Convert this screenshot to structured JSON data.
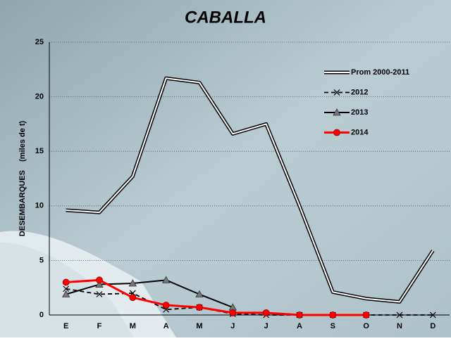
{
  "chart_data": {
    "type": "line",
    "title": "CABALLA",
    "y_label": "DESEMBARQUES    (miles de t)",
    "categories": [
      "E",
      "F",
      "M",
      "A",
      "M",
      "J",
      "J",
      "A",
      "S",
      "O",
      "N",
      "D"
    ],
    "series": [
      {
        "name": "Prom 2000-2011",
        "color": "#000000",
        "style": "double",
        "marker": "none",
        "values": [
          9.6,
          9.4,
          12.7,
          21.7,
          21.3,
          16.6,
          17.5,
          10.0,
          2.1,
          1.5,
          1.2,
          5.9
        ]
      },
      {
        "name": "2012",
        "color": "#000000",
        "style": "dashed",
        "marker": "x",
        "values": [
          2.4,
          1.9,
          2.0,
          0.5,
          0.7,
          0.1,
          0.0,
          0.0,
          0.0,
          0.0,
          0.0,
          0.0
        ]
      },
      {
        "name": "2013",
        "color": "#000000",
        "style": "solid",
        "marker": "triangle",
        "values": [
          1.9,
          2.8,
          2.9,
          3.2,
          1.9,
          0.7,
          null,
          null,
          null,
          null,
          null,
          null
        ]
      },
      {
        "name": "2014",
        "color": "#ff0000",
        "style": "solid",
        "marker": "circle",
        "values": [
          3.0,
          3.2,
          1.6,
          0.9,
          0.7,
          0.2,
          0.2,
          0.0,
          0.0,
          0.0,
          null,
          null
        ]
      }
    ],
    "ylim": [
      0,
      25
    ],
    "yticks": [
      0,
      5,
      10,
      15,
      20,
      25
    ],
    "grid": true,
    "legend": "upper right"
  }
}
